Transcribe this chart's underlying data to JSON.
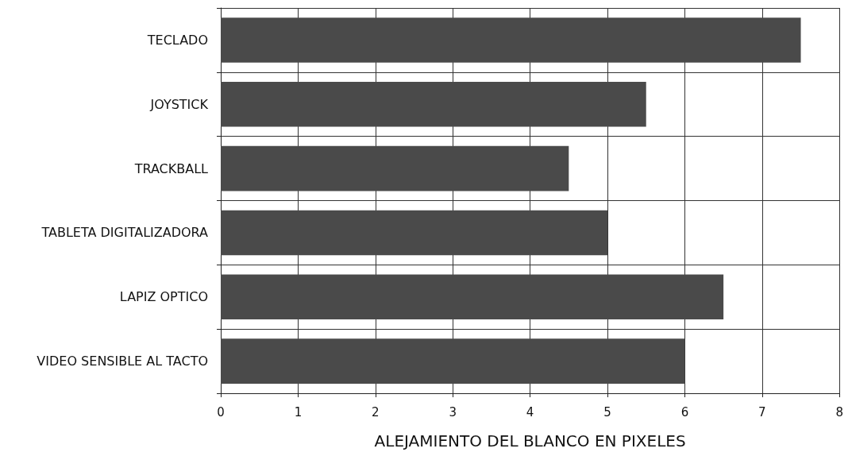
{
  "chart_data": {
    "type": "bar",
    "orientation": "horizontal",
    "xlabel": "ALEJAMIENTO DEL BLANCO EN PIXELES",
    "categories": [
      "TECLADO",
      "JOYSTICK",
      "TRACKBALL",
      "TABLETA DIGITALIZADORA",
      "LAPIZ OPTICO",
      "VIDEO SENSIBLE AL TACTO"
    ],
    "values": [
      7.5,
      5.5,
      4.5,
      5,
      6.5,
      6
    ],
    "color": "#4a4a4a",
    "xlim": [
      0,
      8
    ],
    "xticks": [
      0,
      1,
      2,
      3,
      4,
      5,
      6,
      7,
      8
    ],
    "grid": true
  }
}
